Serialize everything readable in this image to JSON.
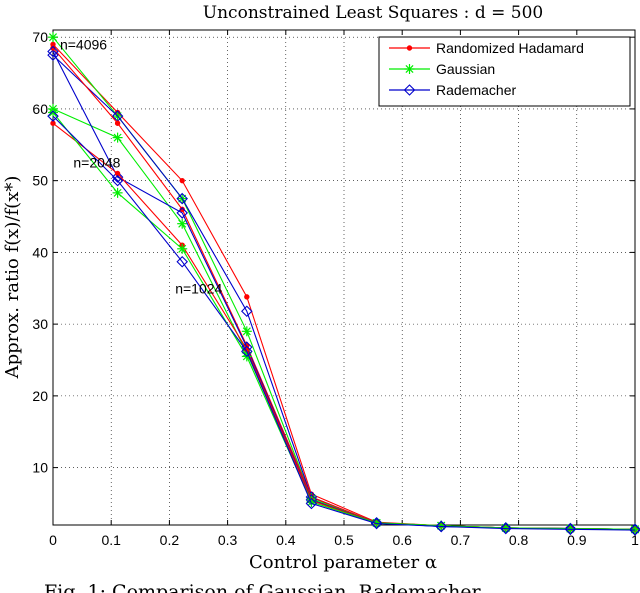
{
  "chart_data": {
    "type": "line",
    "title": "Unconstrained Least Squares : d = 500",
    "xlabel": "Control parameter α",
    "ylabel": "Approx. ratio f(x)/f(x*)",
    "xlim": [
      0,
      1
    ],
    "ylim": [
      2,
      71
    ],
    "xticks": [
      0,
      0.1,
      0.2,
      0.3,
      0.4,
      0.5,
      0.6,
      0.7,
      0.8,
      0.9,
      1
    ],
    "xtick_labels": [
      "0",
      "0.1",
      "0.2",
      "0.3",
      "0.4",
      "0.5",
      "0.6",
      "0.7",
      "0.8",
      "0.9",
      "1"
    ],
    "yticks": [
      10,
      20,
      30,
      40,
      50,
      60,
      70
    ],
    "ytick_labels": [
      "10",
      "20",
      "30",
      "40",
      "50",
      "60",
      "70"
    ],
    "grid": true,
    "legend_position": "top-right",
    "annotations": [
      "n=4096",
      "n=2048",
      "n=1024"
    ],
    "caption": "Fig. 1: Comparison of Gaussian, Rademacher",
    "series": [
      {
        "name": "Randomized Hadamard",
        "group": "n=4096",
        "color": "#ff0000",
        "marker": "dot",
        "x": [
          0,
          0.111,
          0.222,
          0.333,
          0.444,
          0.556,
          0.667,
          0.778,
          0.889,
          1
        ],
        "y": [
          69.0,
          59.5,
          50.0,
          33.8,
          6.3,
          2.4,
          1.9,
          1.6,
          1.5,
          1.4
        ]
      },
      {
        "name": "Gaussian",
        "group": "n=4096",
        "color": "#00ee00",
        "marker": "star",
        "x": [
          0,
          0.111,
          0.222,
          0.333,
          0.444,
          0.556,
          0.667,
          0.778,
          0.889,
          1
        ],
        "y": [
          70.0,
          59.0,
          47.5,
          29.0,
          5.8,
          2.3,
          1.9,
          1.6,
          1.5,
          1.4
        ]
      },
      {
        "name": "Rademacher",
        "group": "n=4096",
        "color": "#0000cc",
        "marker": "diamond",
        "x": [
          0,
          0.111,
          0.222,
          0.333,
          0.444,
          0.556,
          0.667,
          0.778,
          0.889,
          1
        ],
        "y": [
          67.5,
          59.0,
          47.5,
          31.8,
          5.9,
          2.3,
          1.8,
          1.6,
          1.5,
          1.4
        ]
      },
      {
        "name": "",
        "group": "n=2048",
        "color": "#ff0000",
        "marker": "dot",
        "x": [
          0,
          0.111,
          0.222,
          0.333,
          0.444,
          0.556,
          0.667,
          0.778,
          0.889,
          1
        ],
        "y": [
          68.5,
          58.0,
          46.0,
          27.0,
          5.9,
          2.3,
          1.9,
          1.6,
          1.5,
          1.4
        ]
      },
      {
        "name": "",
        "group": "n=2048",
        "color": "#00ee00",
        "marker": "star",
        "x": [
          0,
          0.111,
          0.222,
          0.333,
          0.444,
          0.556,
          0.667,
          0.778,
          0.889,
          1
        ],
        "y": [
          60.0,
          56.0,
          44.0,
          26.0,
          5.6,
          2.3,
          1.9,
          1.6,
          1.5,
          1.4
        ]
      },
      {
        "name": "",
        "group": "n=2048",
        "color": "#0000cc",
        "marker": "diamond",
        "x": [
          0,
          0.111,
          0.222,
          0.333,
          0.444,
          0.556,
          0.667,
          0.778,
          0.889,
          1
        ],
        "y": [
          68.0,
          50.5,
          45.5,
          26.8,
          5.5,
          2.3,
          1.8,
          1.6,
          1.5,
          1.4
        ]
      },
      {
        "name": "",
        "group": "n=1024",
        "color": "#ff0000",
        "marker": "dot",
        "x": [
          0,
          0.111,
          0.222,
          0.333,
          0.444,
          0.556,
          0.667,
          0.778,
          0.889,
          1
        ],
        "y": [
          58.0,
          51.0,
          41.0,
          26.5,
          5.4,
          2.3,
          1.9,
          1.6,
          1.5,
          1.4
        ]
      },
      {
        "name": "",
        "group": "n=1024",
        "color": "#00ee00",
        "marker": "star",
        "x": [
          0,
          0.111,
          0.222,
          0.333,
          0.444,
          0.556,
          0.667,
          0.778,
          0.889,
          1
        ],
        "y": [
          59.5,
          48.3,
          40.5,
          25.5,
          5.2,
          2.3,
          1.9,
          1.6,
          1.5,
          1.4
        ]
      },
      {
        "name": "",
        "group": "n=1024",
        "color": "#0000cc",
        "marker": "diamond",
        "x": [
          0,
          0.111,
          0.222,
          0.333,
          0.444,
          0.556,
          0.667,
          0.778,
          0.889,
          1
        ],
        "y": [
          59.0,
          50.0,
          38.7,
          26.2,
          5.0,
          2.2,
          1.8,
          1.5,
          1.4,
          1.3
        ]
      }
    ]
  }
}
